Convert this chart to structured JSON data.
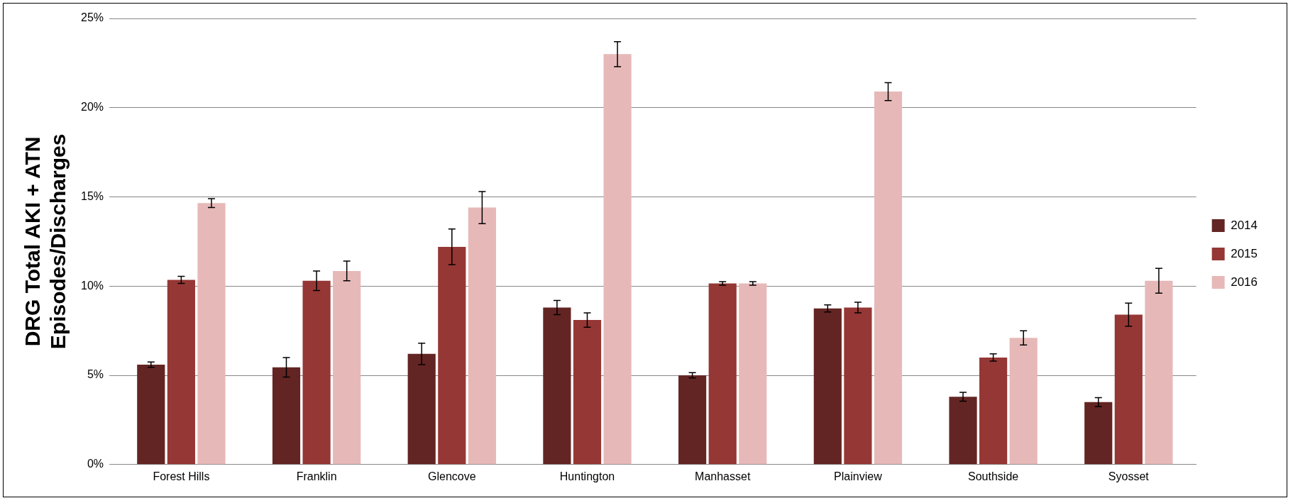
{
  "chart_data": {
    "type": "bar",
    "ylabel": "DRG Total AKI + ATN\nEpisodes/Discharges",
    "categories": [
      "Forest Hills",
      "Franklin",
      "Glencove",
      "Huntington",
      "Manhasset",
      "Plainview",
      "Southside",
      "Syosset"
    ],
    "series": [
      {
        "name": "2014",
        "color": "#632523",
        "values": [
          5.6,
          5.45,
          6.2,
          8.8,
          5.0,
          8.75,
          3.8,
          3.5
        ],
        "errors": [
          0.15,
          0.55,
          0.6,
          0.4,
          0.15,
          0.2,
          0.25,
          0.25
        ]
      },
      {
        "name": "2015",
        "color": "#953735",
        "values": [
          10.35,
          10.3,
          12.2,
          8.1,
          10.15,
          8.8,
          6.0,
          8.4
        ],
        "errors": [
          0.2,
          0.55,
          1.0,
          0.4,
          0.1,
          0.3,
          0.2,
          0.65
        ]
      },
      {
        "name": "2016",
        "color": "#e6b9b8",
        "values": [
          14.65,
          10.85,
          14.4,
          23.0,
          10.15,
          20.9,
          7.1,
          10.3
        ],
        "errors": [
          0.25,
          0.55,
          0.9,
          0.7,
          0.1,
          0.5,
          0.4,
          0.7
        ]
      }
    ],
    "ylim": [
      0,
      25
    ],
    "yticks": [
      {
        "value": 0,
        "label": "0%"
      },
      {
        "value": 5,
        "label": "5%"
      },
      {
        "value": 10,
        "label": "10%"
      },
      {
        "value": 15,
        "label": "15%"
      },
      {
        "value": 20,
        "label": "20%"
      },
      {
        "value": 25,
        "label": "25%"
      }
    ],
    "grid": "y",
    "legend": "right"
  }
}
